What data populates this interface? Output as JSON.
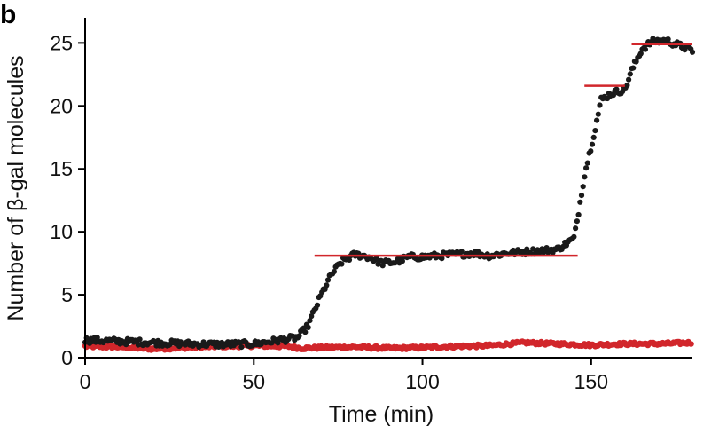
{
  "panel_label": "b",
  "colors": {
    "black_series": "#1a1a1a",
    "red_series": "#d1262b",
    "step_lines": "#d1262b"
  },
  "chart_data": {
    "type": "scatter",
    "xlabel": "Time (min)",
    "ylabel": "Number of β-gal molecules",
    "xlim": [
      0,
      180
    ],
    "ylim": [
      0,
      27
    ],
    "xticks": [
      0,
      50,
      100,
      150
    ],
    "xtick_labels": [
      "0",
      "50",
      "100",
      "150"
    ],
    "yticks": [
      0,
      5,
      10,
      15,
      20,
      25
    ],
    "ytick_labels": [
      "0",
      "5",
      "10",
      "15",
      "20",
      "25"
    ],
    "grid": false,
    "step_levels": [
      {
        "x_start": 68,
        "x_end": 146,
        "y": 8.1
      },
      {
        "x_start": 148,
        "x_end": 160,
        "y": 21.6
      },
      {
        "x_start": 162,
        "x_end": 180,
        "y": 24.9
      }
    ],
    "series": [
      {
        "color": "#1a1a1a",
        "keypoints": [
          [
            0,
            1.4
          ],
          [
            10,
            1.3
          ],
          [
            20,
            1.2
          ],
          [
            30,
            1.1
          ],
          [
            40,
            1.05
          ],
          [
            50,
            1.1
          ],
          [
            58,
            1.4
          ],
          [
            63,
            1.6
          ],
          [
            66,
            2.5
          ],
          [
            70,
            5.0
          ],
          [
            73,
            6.6
          ],
          [
            76,
            7.6
          ],
          [
            80,
            8.2
          ],
          [
            84,
            8.0
          ],
          [
            88,
            7.5
          ],
          [
            92,
            7.6
          ],
          [
            96,
            8.0
          ],
          [
            100,
            8.0
          ],
          [
            105,
            8.1
          ],
          [
            110,
            8.2
          ],
          [
            115,
            8.3
          ],
          [
            120,
            8.1
          ],
          [
            125,
            8.3
          ],
          [
            130,
            8.4
          ],
          [
            135,
            8.5
          ],
          [
            140,
            8.6
          ],
          [
            145,
            9.5
          ],
          [
            148,
            14.5
          ],
          [
            151,
            18.0
          ],
          [
            153,
            20.5
          ],
          [
            156,
            21.0
          ],
          [
            160,
            21.3
          ],
          [
            162,
            22.8
          ],
          [
            165,
            24.5
          ],
          [
            168,
            25.1
          ],
          [
            172,
            25.2
          ],
          [
            176,
            24.8
          ],
          [
            180,
            24.4
          ]
        ],
        "noise": 0.25
      },
      {
        "color": "#d1262b",
        "keypoints": [
          [
            0,
            0.9
          ],
          [
            10,
            0.85
          ],
          [
            20,
            0.7
          ],
          [
            30,
            0.8
          ],
          [
            40,
            0.9
          ],
          [
            50,
            0.95
          ],
          [
            60,
            0.9
          ],
          [
            64,
            0.75
          ],
          [
            70,
            0.8
          ],
          [
            80,
            0.85
          ],
          [
            90,
            0.75
          ],
          [
            100,
            0.8
          ],
          [
            110,
            0.9
          ],
          [
            120,
            0.95
          ],
          [
            130,
            1.2
          ],
          [
            140,
            1.1
          ],
          [
            150,
            1.0
          ],
          [
            160,
            1.1
          ],
          [
            170,
            1.1
          ],
          [
            180,
            1.2
          ]
        ],
        "noise": 0.12
      }
    ]
  }
}
